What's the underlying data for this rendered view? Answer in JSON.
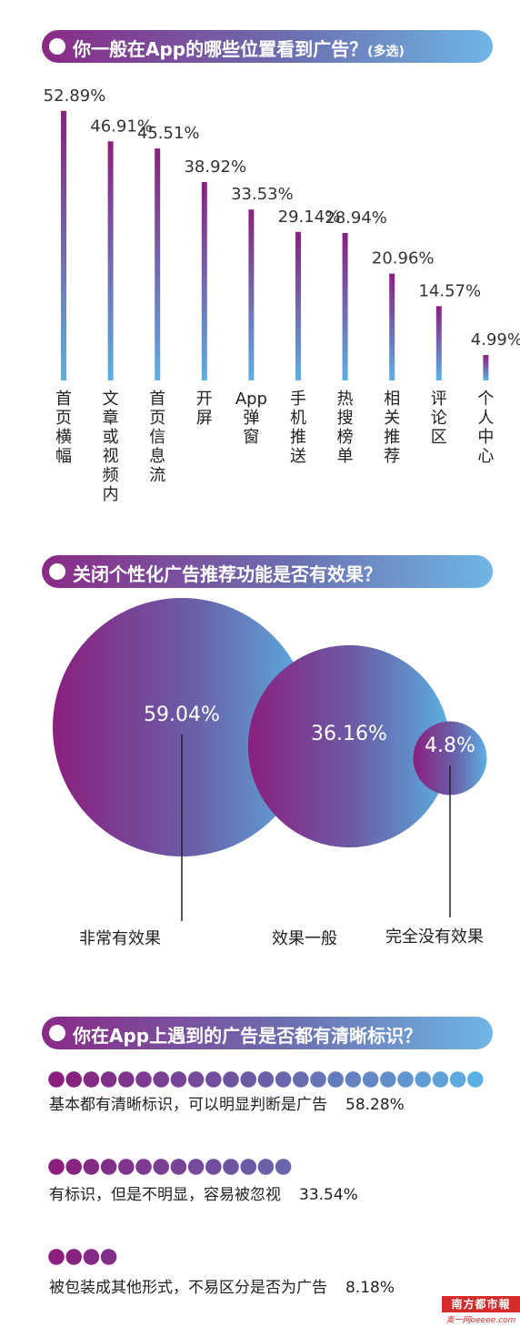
{
  "sections": {
    "s1": {
      "title": "你一般在App的哪些位置看到广告？",
      "suffix": "(多选)"
    },
    "s2": {
      "title": "关闭个性化广告推荐功能是否有效果？"
    },
    "s3": {
      "title": "你在App上遇到的广告是否都有清晰标识？"
    }
  },
  "chart_data": [
    {
      "type": "bar",
      "title": "你一般在App的哪些位置看到广告？(多选)",
      "categories": [
        "首页横幅",
        "文章或视频内",
        "首页信息流",
        "开屏",
        "App弹窗",
        "手机推送",
        "热搜榜单",
        "相关推荐",
        "评论区",
        "个人中心"
      ],
      "values": [
        52.89,
        46.91,
        45.51,
        38.92,
        33.53,
        29.14,
        28.94,
        20.96,
        14.57,
        4.99
      ],
      "labels": [
        "52.89%",
        "46.91%",
        "45.51%",
        "38.92%",
        "33.53%",
        "29.14%",
        "28.94%",
        "20.96%",
        "14.57%",
        "4.99%"
      ],
      "ylim": [
        0,
        55
      ]
    },
    {
      "type": "bubble",
      "title": "关闭个性化广告推荐功能是否有效果？",
      "categories": [
        "非常有效果",
        "效果一般",
        "完全没有效果"
      ],
      "values": [
        59.04,
        36.16,
        4.8
      ],
      "labels": [
        "59.04%",
        "36.16%",
        "4.8%"
      ]
    },
    {
      "type": "dot-bar",
      "title": "你在App上遇到的广告是否都有清晰标识？",
      "categories": [
        "基本都有清晰标识，可以明显判断是广告",
        "有标识，但是不明显，容易被忽视",
        "被包装成其他形式，不易区分是否为广告"
      ],
      "values": [
        58.28,
        33.54,
        8.18
      ],
      "labels": [
        "58.28%",
        "33.54%",
        "8.18%"
      ],
      "dot_counts": [
        25,
        14,
        4
      ]
    }
  ],
  "colors": {
    "start": "#8a1f7e",
    "mid": "#6a5fa8",
    "end": "#5bb0e2"
  },
  "watermark": {
    "top": "南方都市報",
    "bottom": "奥一网oeeee.com"
  }
}
